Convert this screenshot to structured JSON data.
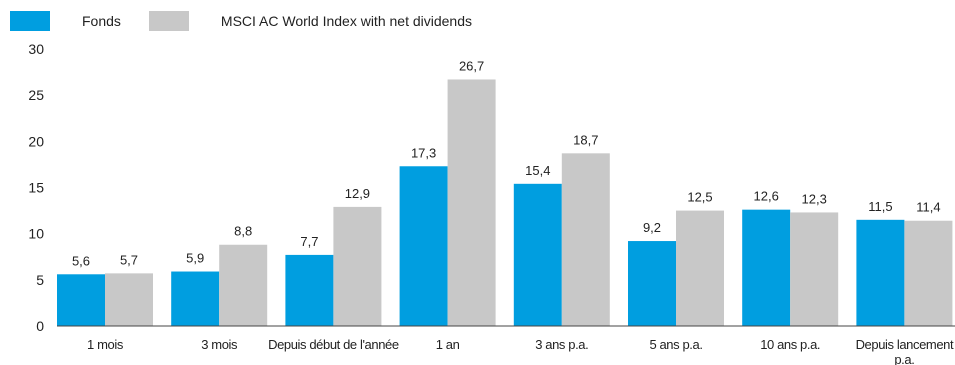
{
  "chart_data": {
    "type": "bar",
    "categories": [
      "1 mois",
      "3 mois",
      "Depuis début de l'année",
      "1 an",
      "3 ans p.a.",
      "5 ans p.a.",
      "10 ans p.a.",
      "Depuis lancement p.a."
    ],
    "category_labels": [
      [
        "1 mois"
      ],
      [
        "3 mois"
      ],
      [
        "Depuis début de l'année"
      ],
      [
        "1 an"
      ],
      [
        "3 ans p.a."
      ],
      [
        "5 ans p.a."
      ],
      [
        "10 ans p.a."
      ],
      [
        "Depuis lancement",
        "p.a."
      ]
    ],
    "series": [
      {
        "name": "Fonds",
        "color": "#009ee0",
        "values": [
          5.6,
          5.9,
          7.7,
          17.3,
          15.4,
          9.2,
          12.6,
          11.5
        ],
        "labels": [
          "5,6",
          "5,9",
          "7,7",
          "17,3",
          "15,4",
          "9,2",
          "12,6",
          "11,5"
        ]
      },
      {
        "name": "MSCI AC World Index with net dividends",
        "color": "#c8c8c8",
        "values": [
          5.7,
          8.8,
          12.9,
          26.7,
          18.7,
          12.5,
          12.3,
          11.4
        ],
        "labels": [
          "5,7",
          "8,8",
          "12,9",
          "26,7",
          "18,7",
          "12,5",
          "12,3",
          "11,4"
        ]
      }
    ],
    "yticks": [
      "0",
      "5",
      "10",
      "15",
      "20",
      "25",
      "30"
    ],
    "ylim": [
      0,
      30
    ],
    "grid": false,
    "legend": "top-left"
  }
}
